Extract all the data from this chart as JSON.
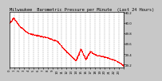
{
  "title": "Milwaukee  Barometric Pressure per Minute  (Last 24 Hours)",
  "line_color": "#ff0000",
  "bg_color": "#c8c8c8",
  "plot_bg_color": "#ffffff",
  "grid_color": "#888888",
  "y_label_color": "#000000",
  "x_tick_color": "#000000",
  "ylim": [
    29.15,
    30.22
  ],
  "yticks": [
    29.2,
    29.4,
    29.6,
    29.8,
    30.0,
    30.2
  ],
  "ytick_labels": [
    "29.2",
    "29.4",
    "29.6",
    "29.8",
    "30.0",
    "30.2"
  ],
  "x_tick_positions": [
    0,
    60,
    120,
    180,
    240,
    300,
    360,
    420,
    480,
    540,
    600,
    660,
    720,
    780,
    840,
    900,
    960,
    1020,
    1080,
    1140,
    1200,
    1260,
    1320,
    1380,
    1439
  ],
  "x_tick_labels": [
    "0",
    "1",
    "2",
    "3",
    "4",
    "5",
    "6",
    "7",
    "8",
    "9",
    "10",
    "11",
    "12",
    "13",
    "14",
    "15",
    "16",
    "17",
    "18",
    "19",
    "20",
    "21",
    "22",
    "23",
    ""
  ],
  "title_fontsize": 3.8,
  "tick_fontsize": 2.8,
  "linewidth": 0.7,
  "markersize": 1.2
}
